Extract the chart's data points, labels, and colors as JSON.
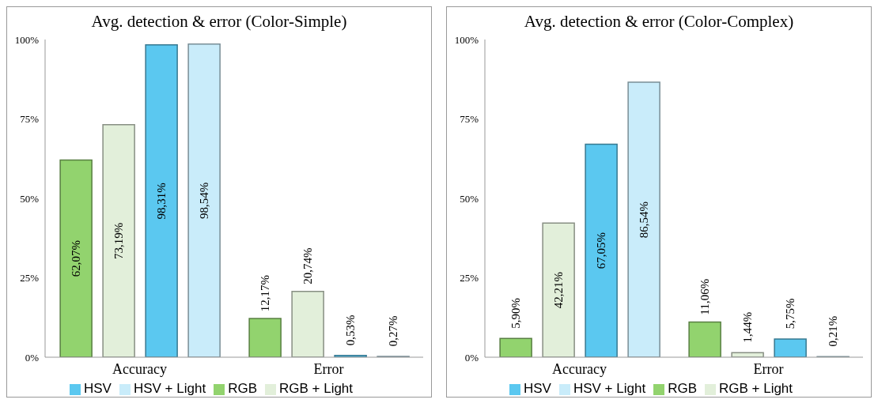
{
  "chart_data": [
    {
      "type": "bar",
      "title": "Avg. detection & error (Color-Simple)",
      "categories": [
        "Accuracy",
        "Error"
      ],
      "series": [
        {
          "name": "RGB",
          "color": "#92d36e",
          "values": [
            62.07,
            12.17
          ],
          "value_labels": [
            "62,07%",
            "12,17%"
          ]
        },
        {
          "name": "RGB + Light",
          "color": "#e2efda",
          "values": [
            73.19,
            20.74
          ],
          "value_labels": [
            "73,19%",
            "20,74%"
          ]
        },
        {
          "name": "HSV",
          "color": "#5bc8f0",
          "values": [
            98.31,
            0.53
          ],
          "value_labels": [
            "98,31%",
            "0,53%"
          ]
        },
        {
          "name": "HSV + Light",
          "color": "#c9ecfa",
          "values": [
            98.54,
            0.27
          ],
          "value_labels": [
            "98,54%",
            "0,27%"
          ]
        }
      ],
      "ylim": [
        0,
        100
      ],
      "yticks": [
        {
          "value": 0,
          "label": "0%"
        },
        {
          "value": 25,
          "label": "25%"
        },
        {
          "value": 50,
          "label": "50%"
        },
        {
          "value": 75,
          "label": "75%"
        },
        {
          "value": 100,
          "label": "100%"
        }
      ],
      "grid": false,
      "legend": "bottom"
    },
    {
      "type": "bar",
      "title": "Avg. detection & error (Color-Complex)",
      "categories": [
        "Accuracy",
        "Error"
      ],
      "series": [
        {
          "name": "RGB",
          "color": "#92d36e",
          "values": [
            5.9,
            11.06
          ],
          "value_labels": [
            "5,90%",
            "11,06%"
          ]
        },
        {
          "name": "RGB + Light",
          "color": "#e2efda",
          "values": [
            42.21,
            1.44
          ],
          "value_labels": [
            "42,21%",
            "1,44%"
          ]
        },
        {
          "name": "HSV",
          "color": "#5bc8f0",
          "values": [
            67.05,
            5.75
          ],
          "value_labels": [
            "67,05%",
            "5,75%"
          ]
        },
        {
          "name": "HSV + Light",
          "color": "#c9ecfa",
          "values": [
            86.54,
            0.21
          ],
          "value_labels": [
            "86,54%",
            "0,21%"
          ]
        }
      ],
      "ylim": [
        0,
        100
      ],
      "yticks": [
        {
          "value": 0,
          "label": "0%"
        },
        {
          "value": 25,
          "label": "25%"
        },
        {
          "value": 50,
          "label": "50%"
        },
        {
          "value": 75,
          "label": "75%"
        },
        {
          "value": 100,
          "label": "100%"
        }
      ],
      "grid": false,
      "legend": "bottom"
    }
  ]
}
